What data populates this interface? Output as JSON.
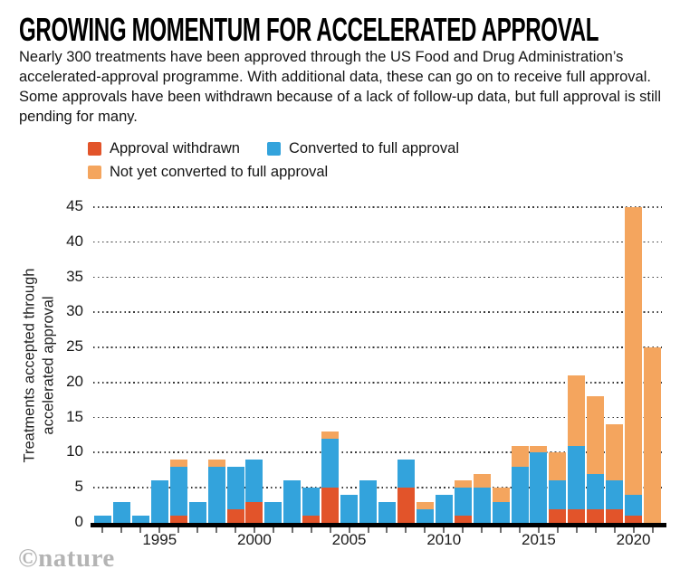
{
  "header": {
    "title": "GROWING MOMENTUM FOR ACCELERATED APPROVAL",
    "subtitle": "Nearly 300 treatments have been approved through the US Food and Drug Administration’s accelerated-approval programme. With additional data, these can go on to receive full approval. Some approvals have been withdrawn because of a lack of follow-up data, but full approval is still pending for many."
  },
  "legend": [
    {
      "label": "Approval withdrawn",
      "color": "#e2542a"
    },
    {
      "label": "Converted to full approval",
      "color": "#33a3dc"
    },
    {
      "label": "Not yet converted to full approval",
      "color": "#f4a55e"
    }
  ],
  "footer": {
    "logo": "©nature"
  },
  "chart_data": {
    "type": "bar",
    "stacked": true,
    "grid": "dotted-horizontal",
    "legend_position": "top",
    "ylabel_line1": "Treatments accepted through",
    "ylabel_line2": "accelerated approval",
    "ylim": [
      0,
      45
    ],
    "ytick_step": 5,
    "yticks": [
      0,
      5,
      10,
      15,
      20,
      25,
      30,
      35,
      40,
      45
    ],
    "categories": [
      1992,
      1993,
      1994,
      1995,
      1996,
      1997,
      1998,
      1999,
      2000,
      2001,
      2002,
      2003,
      2004,
      2005,
      2006,
      2007,
      2008,
      2009,
      2010,
      2011,
      2012,
      2013,
      2014,
      2015,
      2016,
      2017,
      2018,
      2019,
      2020,
      2021
    ],
    "x_labeled_years": [
      1995,
      2000,
      2005,
      2010,
      2015,
      2020
    ],
    "series": [
      {
        "name": "Approval withdrawn",
        "color": "#e2542a",
        "values": [
          0,
          0,
          0,
          0,
          1,
          0,
          0,
          2,
          3,
          0,
          0,
          1,
          5,
          0,
          0,
          0,
          5,
          0,
          0,
          1,
          0,
          0,
          0,
          0,
          2,
          2,
          2,
          2,
          1,
          0
        ]
      },
      {
        "name": "Converted to full approval",
        "color": "#33a3dc",
        "values": [
          1,
          3,
          1,
          6,
          7,
          3,
          8,
          6,
          6,
          3,
          6,
          4,
          7,
          4,
          6,
          3,
          4,
          2,
          4,
          4,
          5,
          3,
          8,
          10,
          4,
          9,
          5,
          4,
          3,
          0
        ]
      },
      {
        "name": "Not yet converted to full approval",
        "color": "#f4a55e",
        "values": [
          0,
          0,
          0,
          0,
          1,
          0,
          1,
          0,
          0,
          0,
          0,
          0,
          1,
          0,
          0,
          0,
          0,
          1,
          0,
          1,
          2,
          2,
          3,
          1,
          4,
          10,
          11,
          8,
          41,
          25
        ]
      }
    ],
    "totals": [
      1,
      3,
      1,
      6,
      9,
      3,
      9,
      8,
      9,
      3,
      6,
      5,
      13,
      4,
      6,
      3,
      9,
      3,
      4,
      6,
      7,
      5,
      11,
      11,
      10,
      21,
      18,
      14,
      45,
      25
    ]
  }
}
